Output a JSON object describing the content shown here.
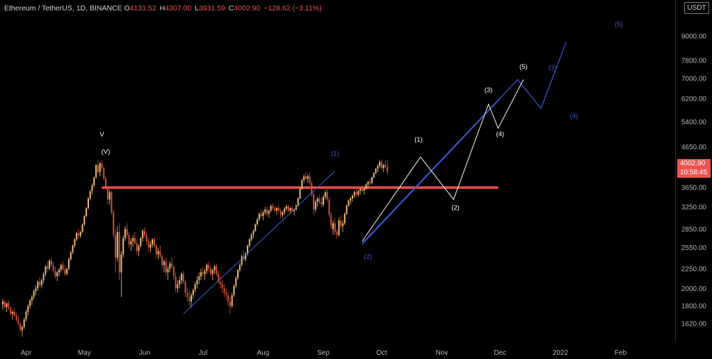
{
  "legend": {
    "symbol": "Ethereum / TetherUS, 1D, BINANCE",
    "open_label": "O",
    "open": "4131.52",
    "high_label": "H",
    "high": "4307.00",
    "low_label": "L",
    "low": "3931.59",
    "close_label": "C",
    "close": "4002.90",
    "change": "−128.62 (−3.11%)"
  },
  "currency": "USDT",
  "last_price": {
    "price": "4002.90",
    "countdown": "10:58:45"
  },
  "colors": {
    "up": "#f5c07a",
    "down": "#d2553c",
    "resistance": "#f24b4b",
    "wave_blue": "#3d5bd9",
    "wave_white": "#ffffff",
    "bg": "#000000",
    "axis_text": "#b2b5be"
  },
  "chart_data": {
    "type": "candlestick",
    "scale": "log",
    "ylim": [
      1480,
      10200
    ],
    "y_ticks": [
      "9000.00",
      "7800.00",
      "7000.00",
      "6200.00",
      "5400.00",
      "4650.00",
      "3650.00",
      "3250.00",
      "2850.00",
      "2550.00",
      "2250.00",
      "2000.00",
      "1800.00",
      "1620.00"
    ],
    "x_ticks": [
      "Apr",
      "May",
      "Jun",
      "Jul",
      "Aug",
      "Sep",
      "Oct",
      "Nov",
      "Dec",
      "2022",
      "Feb"
    ],
    "x_range": [
      "2021-03-20",
      "2022-02-28"
    ],
    "resistance": {
      "price": 3650,
      "from": "2021-05-10",
      "to": "2021-11-30"
    },
    "channel_lines": [
      {
        "points": [
          [
            "2021-06-21",
            1720
          ],
          [
            "2021-09-07",
            4030
          ]
        ]
      },
      {
        "points": [
          [
            "2021-09-21",
            2600
          ],
          [
            "2021-12-01",
            6200
          ]
        ]
      }
    ],
    "wave_blue": [
      [
        "2021-09-21",
        2620
      ],
      [
        "2021-12-10",
        6950
      ],
      [
        "2021-12-22",
        5850
      ],
      [
        "2022-01-04",
        8700
      ]
    ],
    "wave_white": [
      [
        "2021-09-21",
        2650
      ],
      [
        "2021-10-21",
        4380
      ],
      [
        "2021-11-07",
        3400
      ],
      [
        "2021-11-25",
        6000
      ],
      [
        "2021-11-30",
        5200
      ],
      [
        "2021-12-13",
        6950
      ]
    ],
    "labels": [
      {
        "text": "V",
        "date": "2021-05-10",
        "price": 4950,
        "color": "white"
      },
      {
        "text": "(V)",
        "date": "2021-05-12",
        "price": 4460,
        "color": "white"
      },
      {
        "text": "(1)",
        "date": "2021-09-07",
        "price": 4420,
        "color": "blue"
      },
      {
        "text": "(2)",
        "date": "2021-09-24",
        "price": 2390,
        "color": "blue"
      },
      {
        "text": "(1)",
        "date": "2021-10-20",
        "price": 4800,
        "color": "white"
      },
      {
        "text": "(2)",
        "date": "2021-11-08",
        "price": 3200,
        "color": "white"
      },
      {
        "text": "(3)",
        "date": "2021-11-25",
        "price": 6450,
        "color": "white"
      },
      {
        "text": "(4)",
        "date": "2021-12-01",
        "price": 4960,
        "color": "white"
      },
      {
        "text": "(5)",
        "date": "2021-12-13",
        "price": 7420,
        "color": "white"
      },
      {
        "text": "(3)",
        "date": "2021-12-28",
        "price": 7380,
        "color": "blue"
      },
      {
        "text": "(4)",
        "date": "2022-01-08",
        "price": 5520,
        "color": "blue"
      },
      {
        "text": "(5)",
        "date": "2022-01-31",
        "price": 9550,
        "color": "blue"
      }
    ],
    "candles_start": "2021-03-20",
    "candles": [
      [
        1820,
        1880,
        1760,
        1850
      ],
      [
        1850,
        1870,
        1780,
        1790
      ],
      [
        1790,
        1840,
        1740,
        1830
      ],
      [
        1830,
        1860,
        1760,
        1780
      ],
      [
        1780,
        1800,
        1700,
        1720
      ],
      [
        1720,
        1760,
        1660,
        1740
      ],
      [
        1740,
        1780,
        1690,
        1700
      ],
      [
        1700,
        1730,
        1640,
        1660
      ],
      [
        1660,
        1700,
        1600,
        1620
      ],
      [
        1620,
        1640,
        1540,
        1560
      ],
      [
        1560,
        1600,
        1500,
        1590
      ],
      [
        1590,
        1680,
        1570,
        1660
      ],
      [
        1660,
        1760,
        1640,
        1740
      ],
      [
        1740,
        1820,
        1700,
        1800
      ],
      [
        1800,
        1880,
        1770,
        1860
      ],
      [
        1860,
        1920,
        1810,
        1900
      ],
      [
        1900,
        1990,
        1870,
        1970
      ],
      [
        1970,
        2040,
        1920,
        2000
      ],
      [
        2000,
        2100,
        1970,
        2080
      ],
      [
        2080,
        2140,
        2010,
        2040
      ],
      [
        2040,
        2120,
        2000,
        2100
      ],
      [
        2100,
        2200,
        2060,
        2180
      ],
      [
        2180,
        2300,
        2150,
        2280
      ],
      [
        2280,
        2350,
        2200,
        2250
      ],
      [
        2250,
        2380,
        2220,
        2360
      ],
      [
        2360,
        2400,
        2280,
        2300
      ],
      [
        2300,
        2340,
        2200,
        2220
      ],
      [
        2220,
        2280,
        2120,
        2150
      ],
      [
        2150,
        2220,
        2090,
        2200
      ],
      [
        2200,
        2260,
        2150,
        2240
      ],
      [
        2240,
        2320,
        2200,
        2300
      ],
      [
        2300,
        2350,
        2220,
        2240
      ],
      [
        2240,
        2300,
        2150,
        2180
      ],
      [
        2180,
        2260,
        2160,
        2250
      ],
      [
        2250,
        2400,
        2230,
        2380
      ],
      [
        2380,
        2500,
        2360,
        2480
      ],
      [
        2480,
        2600,
        2450,
        2580
      ],
      [
        2580,
        2700,
        2550,
        2680
      ],
      [
        2680,
        2800,
        2650,
        2780
      ],
      [
        2780,
        2850,
        2700,
        2740
      ],
      [
        2740,
        2820,
        2700,
        2800
      ],
      [
        2800,
        2950,
        2780,
        2930
      ],
      [
        2930,
        3100,
        2900,
        3080
      ],
      [
        3080,
        3250,
        3050,
        3230
      ],
      [
        3230,
        3450,
        3200,
        3420
      ],
      [
        3420,
        3600,
        3380,
        3570
      ],
      [
        3570,
        3750,
        3500,
        3700
      ],
      [
        3700,
        3900,
        3650,
        3880
      ],
      [
        3880,
        4200,
        3850,
        4170
      ],
      [
        4170,
        4300,
        3950,
        4000
      ],
      [
        4000,
        4250,
        3900,
        4220
      ],
      [
        4220,
        4300,
        4050,
        4100
      ],
      [
        4100,
        4150,
        3800,
        3850
      ],
      [
        3850,
        3900,
        3600,
        3650
      ],
      [
        3650,
        3700,
        3300,
        3400
      ],
      [
        3400,
        3600,
        3300,
        3550
      ],
      [
        3550,
        3580,
        3100,
        3150
      ],
      [
        3150,
        3200,
        2700,
        2750
      ],
      [
        2750,
        2850,
        2200,
        2400
      ],
      [
        2400,
        2900,
        2350,
        2800
      ],
      [
        2800,
        2950,
        2100,
        2200
      ],
      [
        2200,
        2500,
        1900,
        2450
      ],
      [
        2450,
        2750,
        2400,
        2700
      ],
      [
        2700,
        2900,
        2650,
        2850
      ],
      [
        2850,
        2950,
        2700,
        2750
      ],
      [
        2750,
        2800,
        2550,
        2600
      ],
      [
        2600,
        2700,
        2500,
        2650
      ],
      [
        2650,
        2750,
        2560,
        2700
      ],
      [
        2700,
        2800,
        2600,
        2620
      ],
      [
        2620,
        2680,
        2450,
        2500
      ],
      [
        2500,
        2600,
        2420,
        2580
      ],
      [
        2580,
        2720,
        2550,
        2700
      ],
      [
        2700,
        2850,
        2650,
        2820
      ],
      [
        2820,
        2880,
        2700,
        2750
      ],
      [
        2750,
        2800,
        2600,
        2650
      ],
      [
        2650,
        2700,
        2500,
        2550
      ],
      [
        2550,
        2650,
        2480,
        2600
      ],
      [
        2600,
        2700,
        2550,
        2680
      ],
      [
        2680,
        2720,
        2550,
        2580
      ],
      [
        2580,
        2600,
        2400,
        2450
      ],
      [
        2450,
        2550,
        2380,
        2500
      ],
      [
        2500,
        2580,
        2400,
        2420
      ],
      [
        2420,
        2450,
        2250,
        2300
      ],
      [
        2300,
        2380,
        2200,
        2350
      ],
      [
        2350,
        2400,
        2150,
        2200
      ],
      [
        2200,
        2280,
        2100,
        2250
      ],
      [
        2250,
        2350,
        2200,
        2320
      ],
      [
        2320,
        2400,
        2250,
        2280
      ],
      [
        2280,
        2300,
        2100,
        2150
      ],
      [
        2150,
        2200,
        1950,
        2000
      ],
      [
        2000,
        2100,
        1950,
        2050
      ],
      [
        2050,
        2150,
        2000,
        2100
      ],
      [
        2100,
        2200,
        2050,
        2180
      ],
      [
        2180,
        2220,
        2050,
        2080
      ],
      [
        2080,
        2100,
        1900,
        1950
      ],
      [
        1950,
        2000,
        1850,
        1900
      ],
      [
        1900,
        1980,
        1800,
        1850
      ],
      [
        1850,
        1950,
        1780,
        1920
      ],
      [
        1920,
        2000,
        1880,
        1980
      ],
      [
        1980,
        2080,
        1950,
        2050
      ],
      [
        2050,
        2150,
        2000,
        2100
      ],
      [
        2100,
        2200,
        2050,
        2150
      ],
      [
        2150,
        2250,
        2100,
        2200
      ],
      [
        2200,
        2280,
        2150,
        2180
      ],
      [
        2180,
        2250,
        2100,
        2220
      ],
      [
        2220,
        2320,
        2180,
        2300
      ],
      [
        2300,
        2350,
        2200,
        2250
      ],
      [
        2250,
        2300,
        2150,
        2180
      ],
      [
        2180,
        2250,
        2100,
        2230
      ],
      [
        2230,
        2300,
        2180,
        2280
      ],
      [
        2280,
        2320,
        2150,
        2180
      ],
      [
        2180,
        2220,
        2050,
        2080
      ],
      [
        2080,
        2150,
        2000,
        2050
      ],
      [
        2050,
        2100,
        1950,
        2000
      ],
      [
        2000,
        2050,
        1900,
        1950
      ],
      [
        1950,
        2000,
        1870,
        1920
      ],
      [
        1920,
        1960,
        1800,
        1850
      ],
      [
        1850,
        1900,
        1720,
        1800
      ],
      [
        1800,
        1950,
        1780,
        1920
      ],
      [
        1920,
        2050,
        1900,
        2030
      ],
      [
        2030,
        2150,
        2000,
        2130
      ],
      [
        2130,
        2250,
        2100,
        2230
      ],
      [
        2230,
        2330,
        2200,
        2300
      ],
      [
        2300,
        2450,
        2280,
        2420
      ],
      [
        2420,
        2500,
        2350,
        2380
      ],
      [
        2380,
        2480,
        2350,
        2460
      ],
      [
        2460,
        2600,
        2430,
        2580
      ],
      [
        2580,
        2700,
        2550,
        2680
      ],
      [
        2680,
        2780,
        2640,
        2760
      ],
      [
        2760,
        2850,
        2700,
        2820
      ],
      [
        2820,
        2950,
        2800,
        2930
      ],
      [
        2930,
        3050,
        2900,
        3020
      ],
      [
        3020,
        3150,
        2980,
        3120
      ],
      [
        3120,
        3200,
        3050,
        3080
      ],
      [
        3080,
        3180,
        3000,
        3150
      ],
      [
        3150,
        3250,
        3100,
        3200
      ],
      [
        3200,
        3250,
        3080,
        3120
      ],
      [
        3120,
        3200,
        3050,
        3180
      ],
      [
        3180,
        3300,
        3150,
        3270
      ],
      [
        3270,
        3320,
        3180,
        3220
      ],
      [
        3220,
        3280,
        3150,
        3180
      ],
      [
        3180,
        3250,
        3100,
        3230
      ],
      [
        3230,
        3300,
        3150,
        3180
      ],
      [
        3180,
        3220,
        3050,
        3100
      ],
      [
        3100,
        3180,
        3050,
        3150
      ],
      [
        3150,
        3250,
        3100,
        3220
      ],
      [
        3220,
        3300,
        3180,
        3260
      ],
      [
        3260,
        3300,
        3150,
        3180
      ],
      [
        3180,
        3250,
        3120,
        3230
      ],
      [
        3230,
        3280,
        3150,
        3170
      ],
      [
        3170,
        3220,
        3100,
        3200
      ],
      [
        3200,
        3300,
        3180,
        3280
      ],
      [
        3280,
        3450,
        3250,
        3420
      ],
      [
        3420,
        3650,
        3400,
        3620
      ],
      [
        3620,
        3850,
        3600,
        3820
      ],
      [
        3820,
        3950,
        3750,
        3900
      ],
      [
        3900,
        4000,
        3800,
        3850
      ],
      [
        3850,
        3950,
        3750,
        3900
      ],
      [
        3900,
        3980,
        3700,
        3750
      ],
      [
        3750,
        3800,
        3450,
        3500
      ],
      [
        3500,
        3550,
        3100,
        3200
      ],
      [
        3200,
        3400,
        3150,
        3350
      ],
      [
        3350,
        3450,
        3250,
        3420
      ],
      [
        3420,
        3500,
        3300,
        3350
      ],
      [
        3350,
        3450,
        3250,
        3300
      ],
      [
        3300,
        3500,
        3250,
        3450
      ],
      [
        3450,
        3600,
        3400,
        3550
      ],
      [
        3550,
        3620,
        3350,
        3400
      ],
      [
        3400,
        3450,
        3050,
        3100
      ],
      [
        3100,
        3150,
        2850,
        2900
      ],
      [
        2850,
        3000,
        2750,
        2950
      ],
      [
        2950,
        3050,
        2750,
        2800
      ],
      [
        2800,
        2850,
        2700,
        2750
      ],
      [
        2750,
        3050,
        2720,
        3000
      ],
      [
        3000,
        3100,
        2850,
        2900
      ],
      [
        2900,
        3000,
        2800,
        2950
      ],
      [
        2950,
        3150,
        2920,
        3120
      ],
      [
        3120,
        3300,
        3100,
        3280
      ],
      [
        3280,
        3400,
        3250,
        3380
      ],
      [
        3380,
        3450,
        3300,
        3420
      ],
      [
        3420,
        3500,
        3350,
        3480
      ],
      [
        3480,
        3580,
        3430,
        3550
      ],
      [
        3550,
        3620,
        3450,
        3500
      ],
      [
        3500,
        3600,
        3450,
        3580
      ],
      [
        3580,
        3650,
        3500,
        3620
      ],
      [
        3620,
        3700,
        3550,
        3580
      ],
      [
        3580,
        3650,
        3500,
        3620
      ],
      [
        3620,
        3750,
        3600,
        3720
      ],
      [
        3720,
        3800,
        3650,
        3780
      ],
      [
        3780,
        3850,
        3700,
        3750
      ],
      [
        3750,
        3900,
        3720,
        3880
      ],
      [
        3880,
        4000,
        3850,
        3980
      ],
      [
        3980,
        4100,
        3950,
        4080
      ],
      [
        4080,
        4200,
        4000,
        4150
      ],
      [
        4150,
        4300,
        4100,
        4250
      ],
      [
        4250,
        4320,
        4050,
        4100
      ],
      [
        4100,
        4200,
        4000,
        4180
      ],
      [
        4180,
        4300,
        4100,
        4130
      ],
      [
        4131,
        4307,
        3931,
        4003
      ]
    ]
  }
}
